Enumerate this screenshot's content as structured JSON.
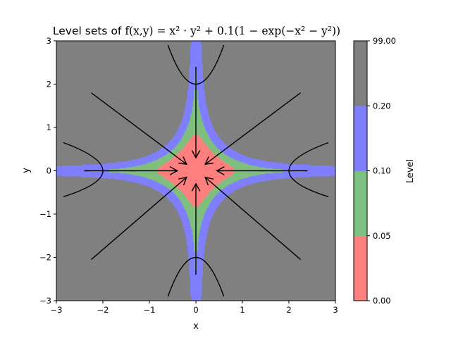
{
  "chart_data": {
    "type": "heatmap",
    "title_prefix": "Level sets of ",
    "title_math": "f(x,y) = x² · y² + 0.1(1 − exp(−x² − y²))",
    "xlabel": "x",
    "ylabel": "y",
    "xlim": [
      -3,
      3
    ],
    "ylim": [
      -3,
      3
    ],
    "xticks": [
      -3,
      -2,
      -1,
      0,
      1,
      2,
      3
    ],
    "yticks": [
      -3,
      -2,
      -1,
      0,
      1,
      2,
      3
    ],
    "xtick_labels": [
      "−3",
      "−2",
      "−1",
      "0",
      "1",
      "2",
      "3"
    ],
    "ytick_labels": [
      "−3",
      "−2",
      "−1",
      "0",
      "1",
      "2",
      "3"
    ],
    "levels": [
      0.0,
      0.05,
      0.1,
      0.2,
      99.0
    ],
    "level_colors": [
      "#ff7f7f",
      "#7fbf7f",
      "#7f7fff",
      "#808080"
    ],
    "colorbar": {
      "label": "Level",
      "tick_labels": [
        "0.00",
        "0.05",
        "0.10",
        "0.20",
        "99.00"
      ]
    },
    "trajectories": [
      {
        "from": [
          -2.25,
          1.8
        ],
        "to": [
          -0.2,
          0.15
        ]
      },
      {
        "from": [
          2.25,
          1.8
        ],
        "to": [
          0.2,
          0.15
        ]
      },
      {
        "from": [
          -2.25,
          -2.05
        ],
        "to": [
          -0.2,
          -0.15
        ]
      },
      {
        "from": [
          2.25,
          -2.05
        ],
        "to": [
          0.2,
          -0.15
        ]
      },
      {
        "from": [
          -2.4,
          0.0
        ],
        "to": [
          -0.4,
          0.0
        ]
      },
      {
        "from": [
          2.4,
          0.0
        ],
        "to": [
          0.45,
          0.0
        ]
      },
      {
        "from": [
          0.0,
          2.4
        ],
        "to": [
          0.0,
          0.3
        ]
      },
      {
        "from": [
          0.0,
          -2.4
        ],
        "to": [
          0.0,
          -0.3
        ]
      }
    ],
    "boundary_arcs": [
      {
        "ends": [
          [
            -0.6,
            2.9
          ],
          [
            0.0,
            2.0
          ],
          [
            0.6,
            2.9
          ]
        ]
      },
      {
        "ends": [
          [
            -0.6,
            -2.9
          ],
          [
            0.0,
            -2.0
          ],
          [
            0.6,
            -2.9
          ]
        ]
      },
      {
        "ends": [
          [
            -2.85,
            0.65
          ],
          [
            -2.0,
            0.0
          ],
          [
            -2.85,
            -0.6
          ]
        ]
      },
      {
        "ends": [
          [
            2.85,
            0.65
          ],
          [
            2.0,
            0.0
          ],
          [
            2.85,
            -0.6
          ]
        ]
      }
    ]
  }
}
